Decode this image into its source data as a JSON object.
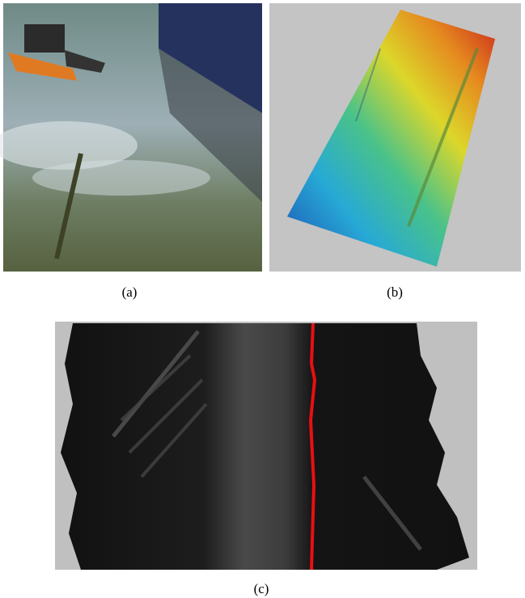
{
  "figure": {
    "panels": [
      {
        "label": "(a)"
      },
      {
        "label": "(b)"
      },
      {
        "label": "(c)"
      }
    ]
  }
}
